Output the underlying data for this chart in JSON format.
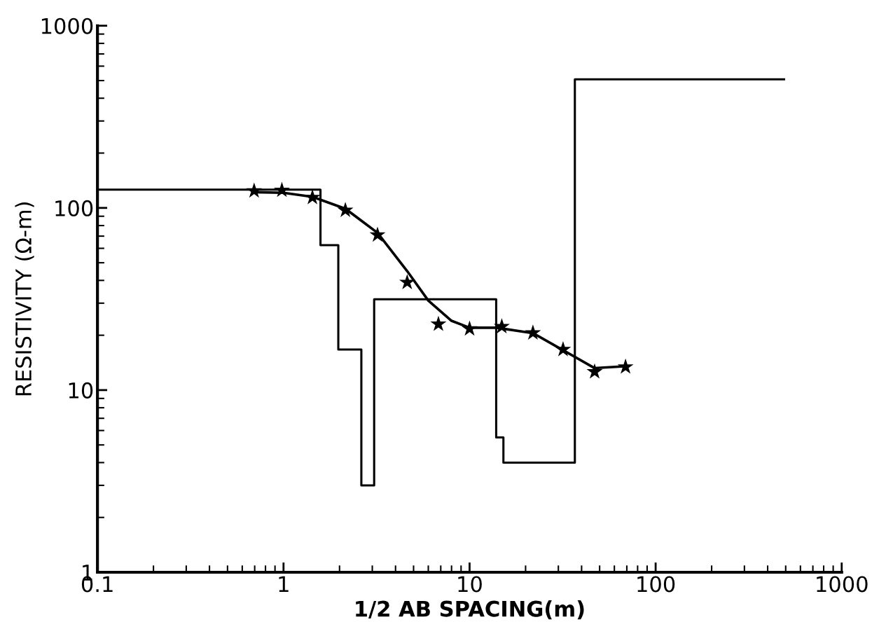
{
  "chart_data": {
    "type": "line",
    "xlabel": "1/2 AB SPACING(m)",
    "ylabel": "RESISTIVITY (Ω-m)",
    "log": "xy",
    "xlim": [
      0.1,
      1000
    ],
    "ylim": [
      1,
      1000
    ],
    "xticks": [
      {
        "value": 0.1,
        "label": "0.1"
      },
      1,
      10,
      100,
      1000
    ],
    "yticks": [
      1,
      10,
      100,
      1000
    ],
    "series": [
      {
        "type": "step",
        "color": "#000000",
        "marker": "none",
        "x": [
          0.1,
          1.58,
          1.97,
          2.62,
          3.07,
          13.9,
          15.2,
          36.8,
          490
        ],
        "values": [
          126,
          62.5,
          16.7,
          3.0,
          31.5,
          5.5,
          4.0,
          508,
          508
        ]
      },
      {
        "color": "#000000",
        "marker": "none",
        "x": [
          0.7,
          1.0,
          1.43,
          2.15,
          3.2,
          4.62,
          6.0,
          8.0,
          10,
          14,
          22,
          32,
          47,
          68
        ],
        "values": [
          122,
          121,
          115,
          99,
          73,
          45,
          31,
          24,
          22,
          22,
          20.5,
          16.5,
          13.2,
          13.5
        ]
      },
      {
        "type": "scatter",
        "color": "#000000",
        "marker": "star",
        "x": [
          0.695,
          0.98,
          1.43,
          2.15,
          3.2,
          4.62,
          6.8,
          10,
          14.9,
          21.9,
          31.8,
          47,
          68.9
        ],
        "values": [
          124,
          125,
          114,
          97,
          71,
          39,
          23,
          21.7,
          22.3,
          20.6,
          16.7,
          12.6,
          13.4
        ]
      }
    ]
  }
}
